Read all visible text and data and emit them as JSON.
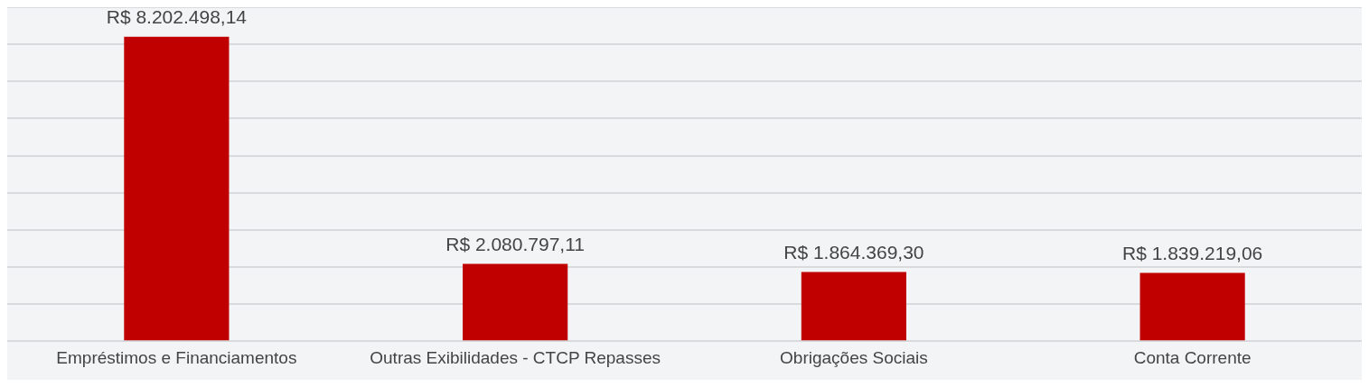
{
  "chart_data": {
    "type": "bar",
    "categories": [
      "Empréstimos e Financiamentos",
      "Outras Exibilidades - CTCP Repasses",
      "Obrigações Sociais",
      "Conta Corrente"
    ],
    "values": [
      8202498.14,
      2080797.11,
      1864369.3,
      1839219.06
    ],
    "value_labels": [
      "R$ 8.202.498,14",
      "R$ 2.080.797,11",
      "R$ 1.864.369,30",
      "R$ 1.839.219,06"
    ],
    "color": "#c00000",
    "ylim": [
      0,
      9000000
    ],
    "yticks": [
      {
        "value": 0,
        "label": null
      },
      {
        "value": 1000000,
        "label": null
      },
      {
        "value": 2000000,
        "label": null
      },
      {
        "value": 3000000,
        "label": null
      },
      {
        "value": 4000000,
        "label": null
      },
      {
        "value": 5000000,
        "label": null
      },
      {
        "value": 6000000,
        "label": null
      },
      {
        "value": 7000000,
        "label": null
      },
      {
        "value": 8000000,
        "label": null
      },
      {
        "value": 9000000,
        "label": null
      }
    ],
    "tick_labels": "x",
    "grid": "y",
    "legend": false
  }
}
